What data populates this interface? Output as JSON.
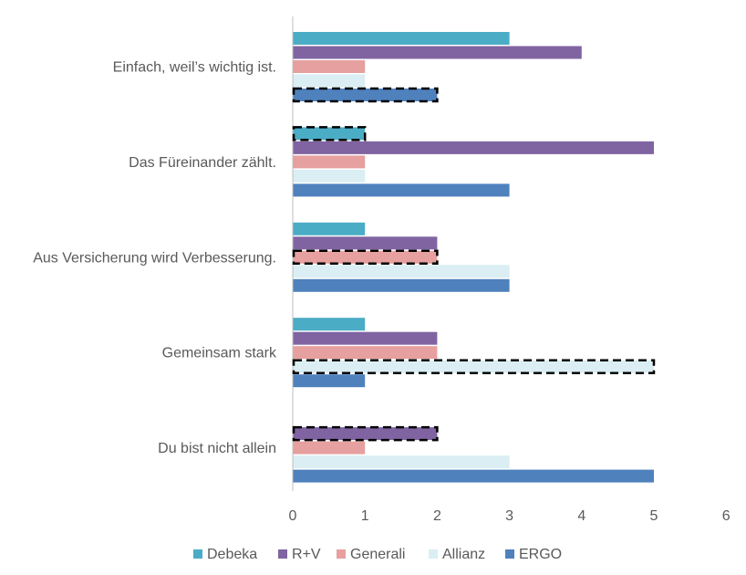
{
  "chart_data": {
    "type": "bar",
    "orientation": "horizontal",
    "categories": [
      "Einfach, weil’s wichtig ist.",
      "Das Füreinander zählt.",
      "Aus Versicherung wird Verbesserung.",
      "Gemeinsam stark",
      "Du bist nicht allein"
    ],
    "series": [
      {
        "name": "Debeka",
        "color": "#4BACC6",
        "values": [
          3,
          1,
          1,
          1,
          0
        ]
      },
      {
        "name": "R+V",
        "color": "#8064A2",
        "values": [
          4,
          5,
          2,
          2,
          2
        ]
      },
      {
        "name": "Generali",
        "color": "#E6A09F",
        "values": [
          1,
          1,
          2,
          2,
          1
        ]
      },
      {
        "name": "Allianz",
        "color": "#DAEEF3",
        "values": [
          1,
          1,
          3,
          5,
          3
        ]
      },
      {
        "name": "ERGO",
        "color": "#4F81BD",
        "values": [
          2,
          3,
          3,
          1,
          5
        ]
      }
    ],
    "highlighted": [
      {
        "category": "Einfach, weil’s wichtig ist.",
        "series": "ERGO"
      },
      {
        "category": "Das Füreinander zählt.",
        "series": "Debeka"
      },
      {
        "category": "Aus Versicherung wird Verbesserung.",
        "series": "Generali"
      },
      {
        "category": "Gemeinsam stark",
        "series": "Allianz"
      },
      {
        "category": "Du bist nicht allein",
        "series": "R+V"
      }
    ],
    "xlim": [
      0,
      6
    ],
    "xticks": [
      "0",
      "1",
      "2",
      "3",
      "4",
      "5",
      "6"
    ],
    "grid": false,
    "legend_position": "bottom"
  }
}
